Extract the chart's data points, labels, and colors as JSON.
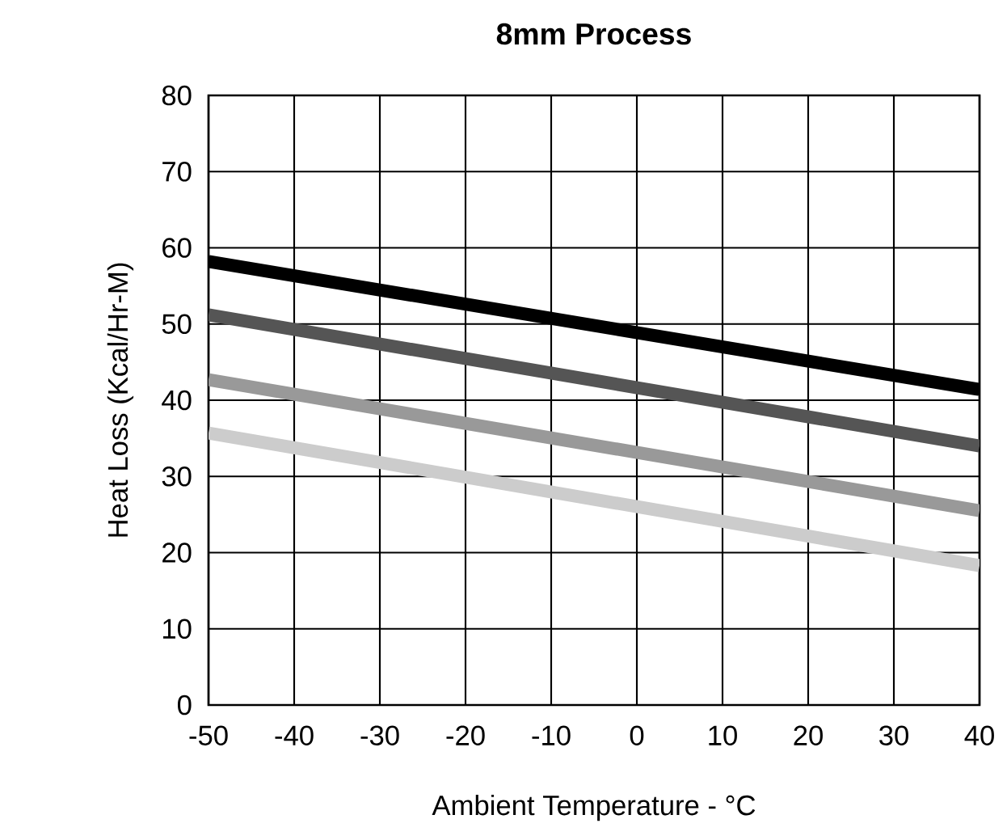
{
  "chart_data": {
    "type": "line",
    "title": "8mm Process",
    "xlabel": "Ambient Temperature - °C",
    "ylabel": "Heat Loss (Kcal/Hr-M)",
    "x": [
      -50,
      40
    ],
    "series": [
      {
        "color": "#000000",
        "values": [
          58.2,
          41.4
        ]
      },
      {
        "color": "#555555",
        "values": [
          51.2,
          34
        ]
      },
      {
        "color": "#999999",
        "values": [
          42.7,
          25.5
        ]
      },
      {
        "color": "#cccccc",
        "values": [
          35.7,
          18.3
        ]
      }
    ],
    "xlim": [
      -50,
      40
    ],
    "ylim": [
      0,
      80
    ],
    "xticks": [
      -50,
      -40,
      -30,
      -20,
      -10,
      0,
      10,
      20,
      30,
      40
    ],
    "yticks": [
      0,
      10,
      20,
      30,
      40,
      50,
      60,
      70,
      80
    ],
    "grid": true,
    "legend": false,
    "marker": "none",
    "line_style": "solid"
  }
}
